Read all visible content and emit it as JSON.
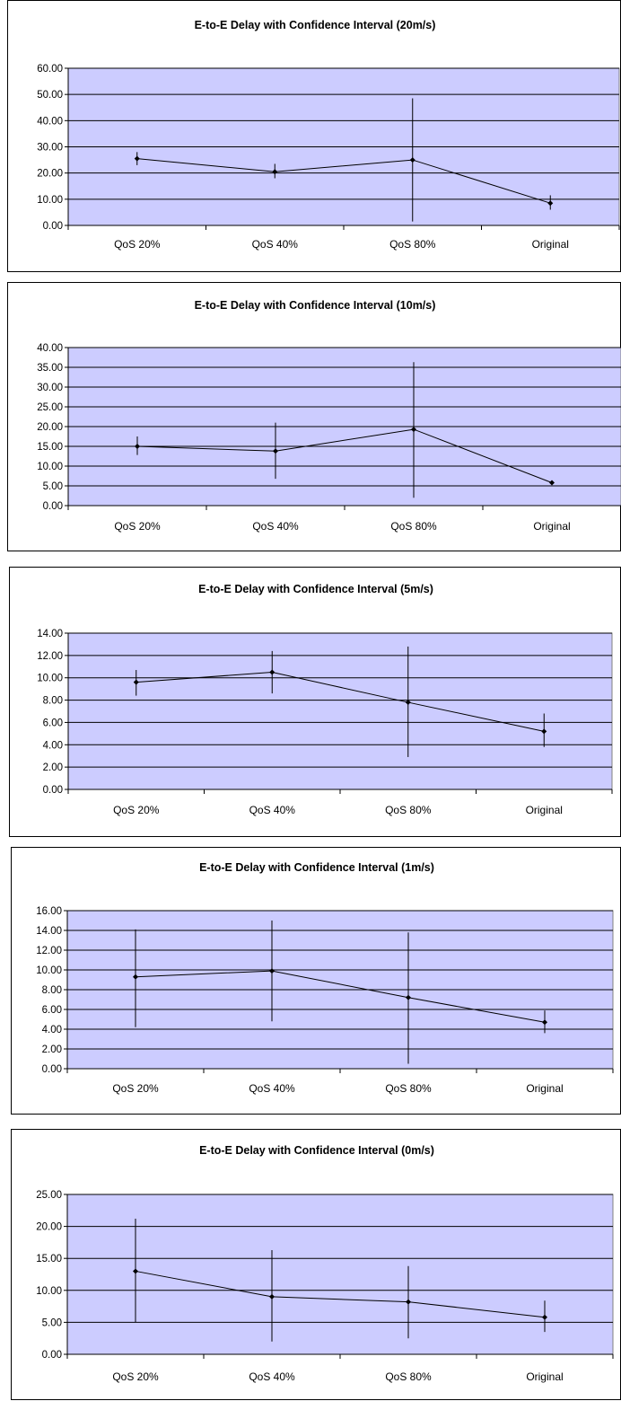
{
  "chart_data": [
    {
      "type": "line",
      "title": "E-to-E Delay with Confidence Interval (20m/s)",
      "categories": [
        "QoS 20%",
        "QoS 40%",
        "QoS 80%",
        "Original"
      ],
      "values": [
        25.5,
        20.5,
        25.0,
        8.5
      ],
      "error_low": [
        23.0,
        18.0,
        1.5,
        6.0
      ],
      "error_high": [
        28.0,
        23.5,
        48.5,
        11.5
      ],
      "ylim": [
        0,
        60
      ],
      "yticks": [
        "0.00",
        "10.00",
        "20.00",
        "30.00",
        "40.00",
        "50.00",
        "60.00"
      ],
      "grid": true,
      "plot_bg": "#ccccff"
    },
    {
      "type": "line",
      "title": "E-to-E Delay with Confidence Interval (10m/s)",
      "categories": [
        "QoS 20%",
        "QoS 40%",
        "QoS 80%",
        "Original"
      ],
      "values": [
        15.0,
        13.8,
        19.3,
        5.8
      ],
      "error_low": [
        12.8,
        6.8,
        2.0,
        5.6
      ],
      "error_high": [
        17.5,
        21.0,
        36.3,
        6.1
      ],
      "ylim": [
        0,
        40
      ],
      "yticks": [
        "0.00",
        "5.00",
        "10.00",
        "15.00",
        "20.00",
        "25.00",
        "30.00",
        "35.00",
        "40.00"
      ],
      "grid": true,
      "plot_bg": "#ccccff"
    },
    {
      "type": "line",
      "title": "E-to-E Delay with Confidence Interval (5m/s)",
      "categories": [
        "QoS 20%",
        "QoS 40%",
        "QoS 80%",
        "Original"
      ],
      "values": [
        9.6,
        10.5,
        7.8,
        5.2
      ],
      "error_low": [
        8.4,
        8.6,
        2.9,
        3.8
      ],
      "error_high": [
        10.7,
        12.4,
        12.8,
        6.8
      ],
      "ylim": [
        0,
        14
      ],
      "yticks": [
        "0.00",
        "2.00",
        "4.00",
        "6.00",
        "8.00",
        "10.00",
        "12.00",
        "14.00"
      ],
      "grid": true,
      "plot_bg": "#ccccff"
    },
    {
      "type": "line",
      "title": "E-to-E Delay with Confidence Interval (1m/s)",
      "categories": [
        "QoS 20%",
        "QoS 40%",
        "QoS 80%",
        "Original"
      ],
      "values": [
        9.3,
        9.9,
        7.2,
        4.7
      ],
      "error_low": [
        4.2,
        4.8,
        0.5,
        3.6
      ],
      "error_high": [
        14.1,
        15.0,
        13.8,
        5.9
      ],
      "ylim": [
        0,
        16
      ],
      "yticks": [
        "0.00",
        "2.00",
        "4.00",
        "6.00",
        "8.00",
        "10.00",
        "12.00",
        "14.00",
        "16.00"
      ],
      "grid": true,
      "plot_bg": "#ccccff"
    },
    {
      "type": "line",
      "title": "E-to-E Delay with Confidence Interval (0m/s)",
      "categories": [
        "QoS 20%",
        "QoS 40%",
        "QoS 80%",
        "Original"
      ],
      "values": [
        13.0,
        9.0,
        8.2,
        5.8
      ],
      "error_low": [
        5.0,
        2.0,
        2.5,
        3.5
      ],
      "error_high": [
        21.2,
        16.3,
        13.8,
        8.4
      ],
      "ylim": [
        0,
        25
      ],
      "yticks": [
        "0.00",
        "5.00",
        "10.00",
        "15.00",
        "20.00",
        "25.00"
      ],
      "grid": true,
      "plot_bg": "#ccccff"
    }
  ]
}
